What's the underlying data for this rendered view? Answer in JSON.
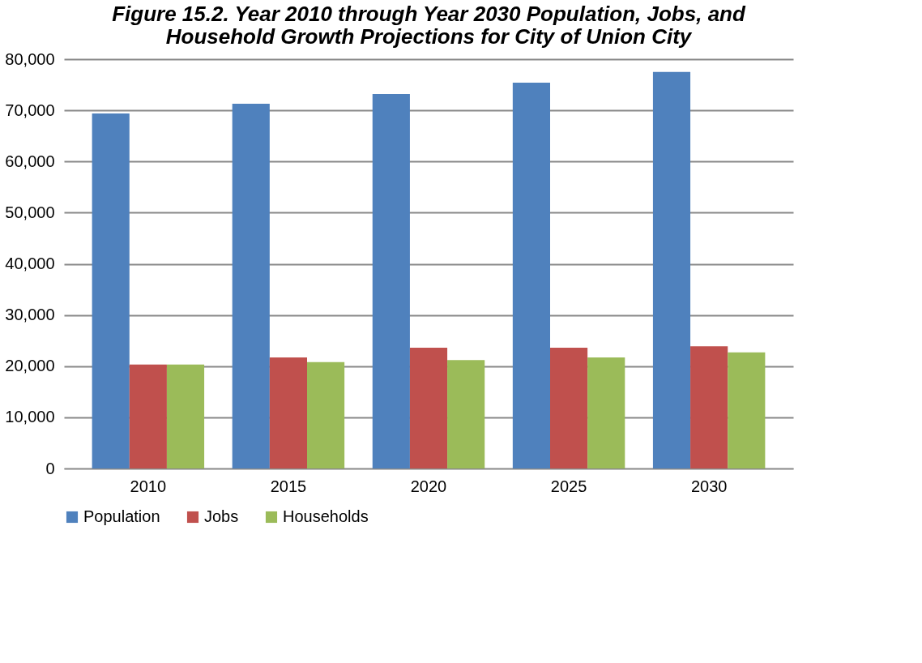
{
  "chart_data": {
    "type": "bar",
    "title": "Figure 15.2. Year 2010 through Year 2030 Population, Jobs, and Household Growth Projections for City of Union City",
    "categories": [
      "2010",
      "2015",
      "2020",
      "2025",
      "2030"
    ],
    "series": [
      {
        "name": "Population",
        "color": "#4f81bd",
        "values": [
          69400,
          71300,
          73200,
          75400,
          77500
        ]
      },
      {
        "name": "Jobs",
        "color": "#c0504d",
        "values": [
          20300,
          21700,
          23600,
          23600,
          23900
        ]
      },
      {
        "name": "Households",
        "color": "#9bbb59",
        "values": [
          20300,
          20800,
          21200,
          21700,
          22700
        ]
      }
    ],
    "ylim": [
      0,
      80000
    ],
    "yticks": [
      0,
      {
        "value": 10000,
        "label": "10,000"
      },
      {
        "value": 20000,
        "label": "20,000"
      },
      {
        "value": 30000,
        "label": "30,000"
      },
      {
        "value": 40000,
        "label": "40,000"
      },
      {
        "value": 50000,
        "label": "50,000"
      },
      {
        "value": 60000,
        "label": "60,000"
      },
      {
        "value": 70000,
        "label": "70,000"
      },
      {
        "value": 80000,
        "label": "80,000"
      }
    ],
    "grid": "y",
    "legend": "bottom"
  }
}
